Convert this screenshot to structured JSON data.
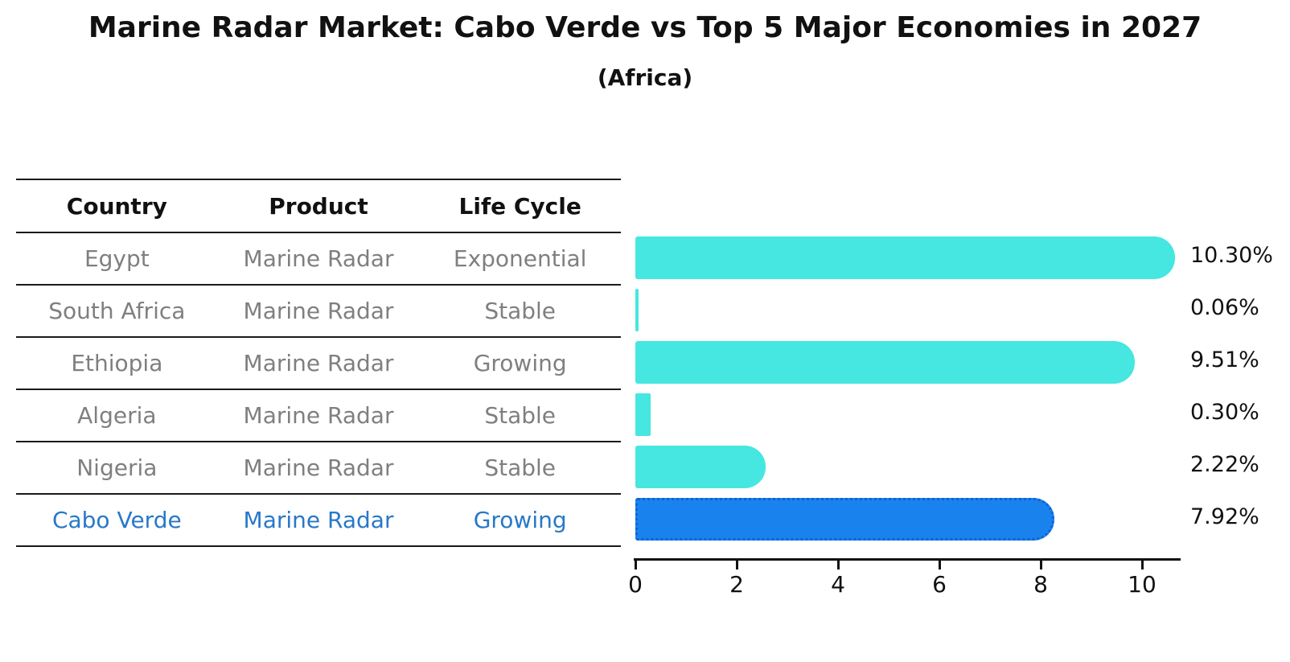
{
  "title": "Marine Radar Market: Cabo Verde vs Top 5 Major Economies in 2027",
  "subtitle": "(Africa)",
  "table": {
    "headers": [
      "Country",
      "Product",
      "Life Cycle"
    ],
    "rows": [
      {
        "country": "Egypt",
        "product": "Marine Radar",
        "life_cycle": "Exponential",
        "highlight": false
      },
      {
        "country": "South Africa",
        "product": "Marine Radar",
        "life_cycle": "Stable",
        "highlight": false
      },
      {
        "country": "Ethiopia",
        "product": "Marine Radar",
        "life_cycle": "Growing",
        "highlight": false
      },
      {
        "country": "Algeria",
        "product": "Marine Radar",
        "life_cycle": "Stable",
        "highlight": false
      },
      {
        "country": "Nigeria",
        "product": "Marine Radar",
        "life_cycle": "Stable",
        "highlight": false
      },
      {
        "country": "Cabo Verde",
        "product": "Marine Radar",
        "life_cycle": "Growing",
        "highlight": true
      }
    ]
  },
  "chart_data": {
    "type": "bar",
    "orientation": "horizontal",
    "title": "Marine Radar Market: Cabo Verde vs Top 5 Major Economies in 2027",
    "subtitle": "(Africa)",
    "categories": [
      "Egypt",
      "South Africa",
      "Ethiopia",
      "Algeria",
      "Nigeria",
      "Cabo Verde"
    ],
    "values": [
      10.3,
      0.06,
      9.51,
      0.3,
      2.22,
      7.92
    ],
    "value_labels": [
      "10.30%",
      "0.06%",
      "9.51%",
      "0.30%",
      "2.22%",
      "7.92%"
    ],
    "x_ticks": [
      0,
      2,
      4,
      6,
      8,
      10
    ],
    "xlim": [
      0,
      10.8
    ],
    "grid": false,
    "legend": false,
    "bar_color": "#45E7E0",
    "highlight_bar_color": "#1A82EC",
    "highlight_bar_border_color": "#1063D8",
    "highlight_index": 5,
    "text_color": "#111111",
    "muted_text_color": "#7f7f7f",
    "highlight_text_color": "#2878C8"
  }
}
